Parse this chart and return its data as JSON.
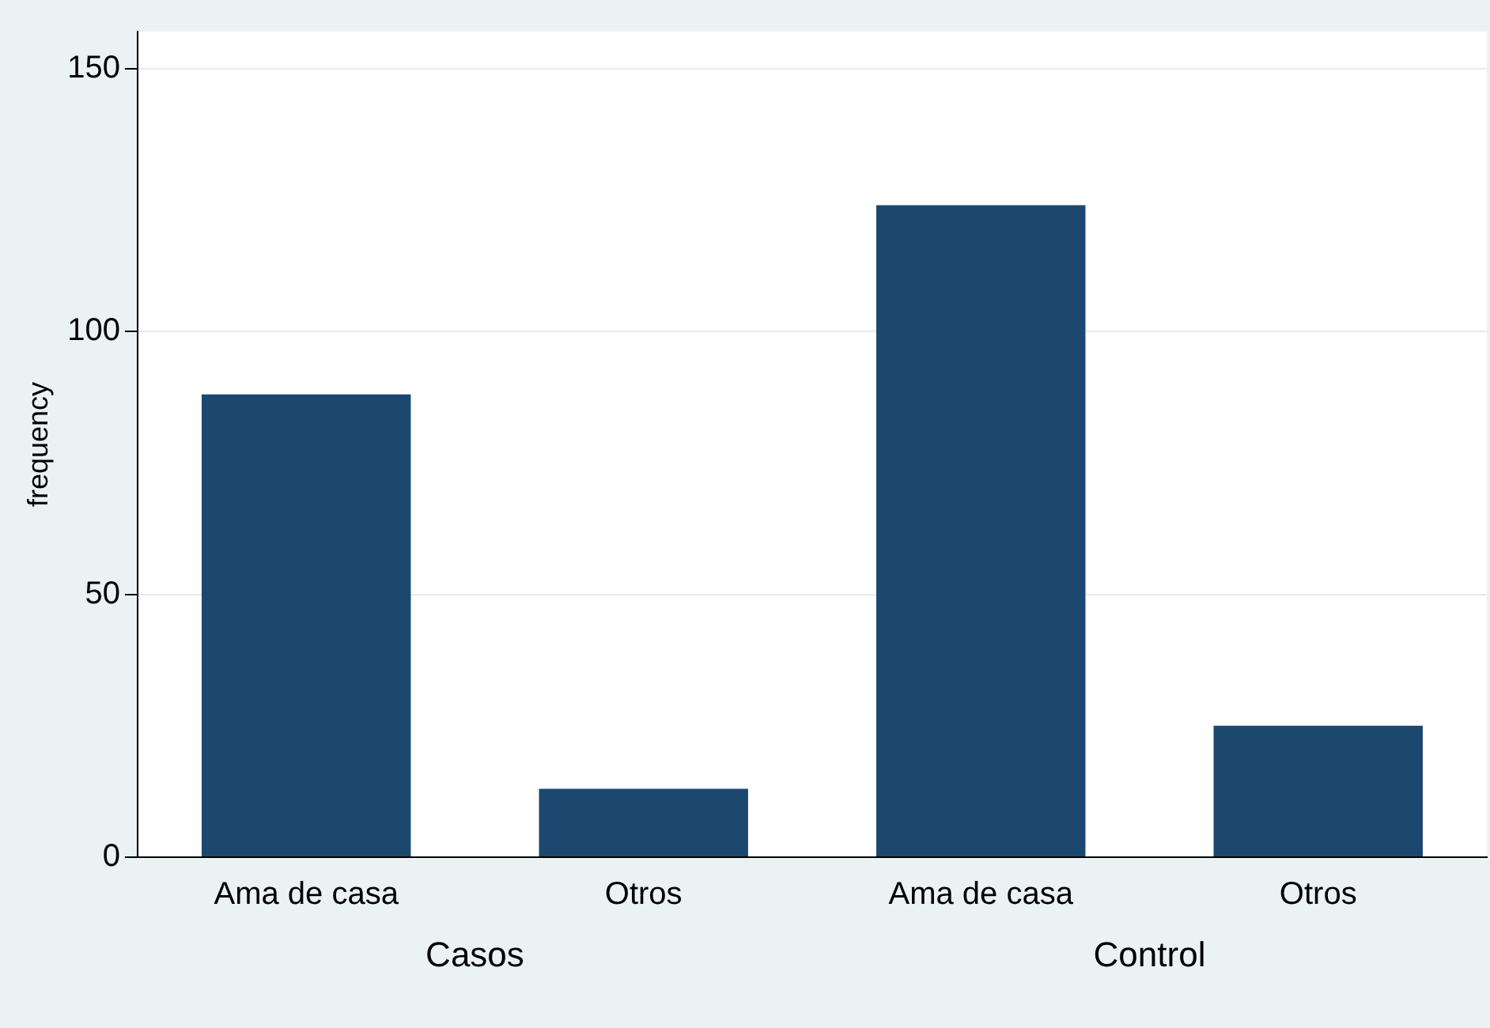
{
  "chart_data": {
    "type": "bar",
    "ylabel": "frequency",
    "categories": [
      "Ama de casa",
      "Otros",
      "Ama de casa",
      "Otros"
    ],
    "values": [
      88,
      13,
      124,
      25
    ],
    "color": "#1c4870",
    "ylim": [
      0,
      157
    ],
    "yticks": [
      0,
      50,
      100,
      150
    ],
    "grid": "y",
    "legend": false,
    "annotations": [
      "Casos",
      "Control"
    ]
  }
}
